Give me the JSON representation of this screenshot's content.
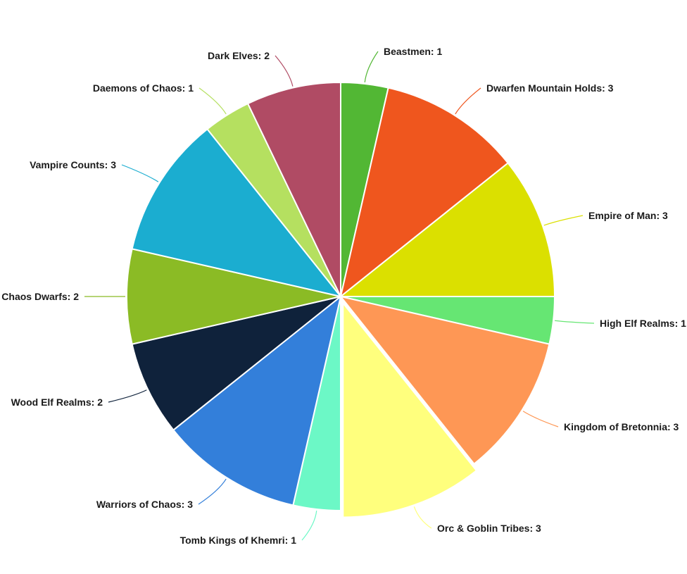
{
  "chart_data": {
    "type": "pie",
    "title": "",
    "start_angle_deg": 0,
    "direction": "clockwise",
    "exploded": "Orc & Goblin Tribes",
    "labels_format": "{name}: {value}",
    "slices": [
      {
        "name": "Beastmen",
        "value": 1,
        "color": "#52b734"
      },
      {
        "name": "Dwarfen Mountain Holds",
        "value": 3,
        "color": "#ef561e"
      },
      {
        "name": "Empire of Man",
        "value": 3,
        "color": "#dbe000"
      },
      {
        "name": "High Elf Realms",
        "value": 1,
        "color": "#66e673"
      },
      {
        "name": "Kingdom of Bretonnia",
        "value": 3,
        "color": "#fe9755"
      },
      {
        "name": "Orc & Goblin Tribes",
        "value": 3,
        "color": "#ffff7d"
      },
      {
        "name": "Tomb Kings of Khemri",
        "value": 1,
        "color": "#6cf8c6"
      },
      {
        "name": "Warriors of Chaos",
        "value": 3,
        "color": "#337fda"
      },
      {
        "name": "Wood Elf Realms",
        "value": 2,
        "color": "#0f223b"
      },
      {
        "name": "Chaos Dwarfs",
        "value": 2,
        "color": "#8bbb25"
      },
      {
        "name": "Vampire Counts",
        "value": 3,
        "color": "#1badd0"
      },
      {
        "name": "Daemons of Chaos",
        "value": 1,
        "color": "#b5e060"
      },
      {
        "name": "Dark Elves",
        "value": 2,
        "color": "#b04b64"
      }
    ]
  }
}
